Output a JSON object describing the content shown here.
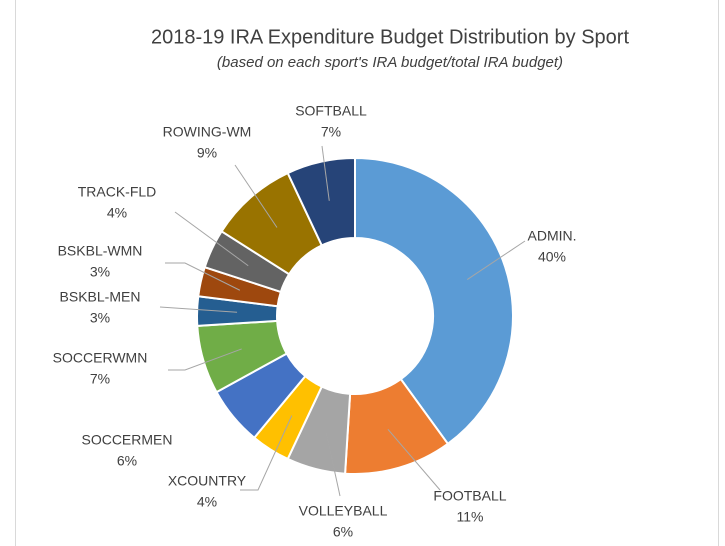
{
  "chart_data": {
    "type": "donut",
    "title": "2018-19 IRA Expenditure Budget Distribution by Sport",
    "subtitle": "(based on each sport's IRA budget/total IRA budget)",
    "categories": [
      "ADMIN.",
      "FOOTBALL",
      "VOLLEYBALL",
      "XCOUNTRY",
      "SOCCERMEN",
      "SOCCERWMN",
      "BSKBL-MEN",
      "BSKBL-WMN",
      "TRACK-FLD",
      "ROWING-WM",
      "SOFTBALL"
    ],
    "values": [
      40,
      11,
      6,
      4,
      6,
      7,
      3,
      3,
      4,
      9,
      7
    ],
    "value_labels": [
      "40%",
      "11%",
      "6%",
      "4%",
      "6%",
      "7%",
      "3%",
      "3%",
      "4%",
      "9%",
      "7%"
    ],
    "colors": [
      "#5b9bd5",
      "#ed7d31",
      "#a5a5a5",
      "#ffc000",
      "#4472c4",
      "#70ad47",
      "#255e91",
      "#9e480e",
      "#636363",
      "#997300",
      "#264478"
    ]
  }
}
